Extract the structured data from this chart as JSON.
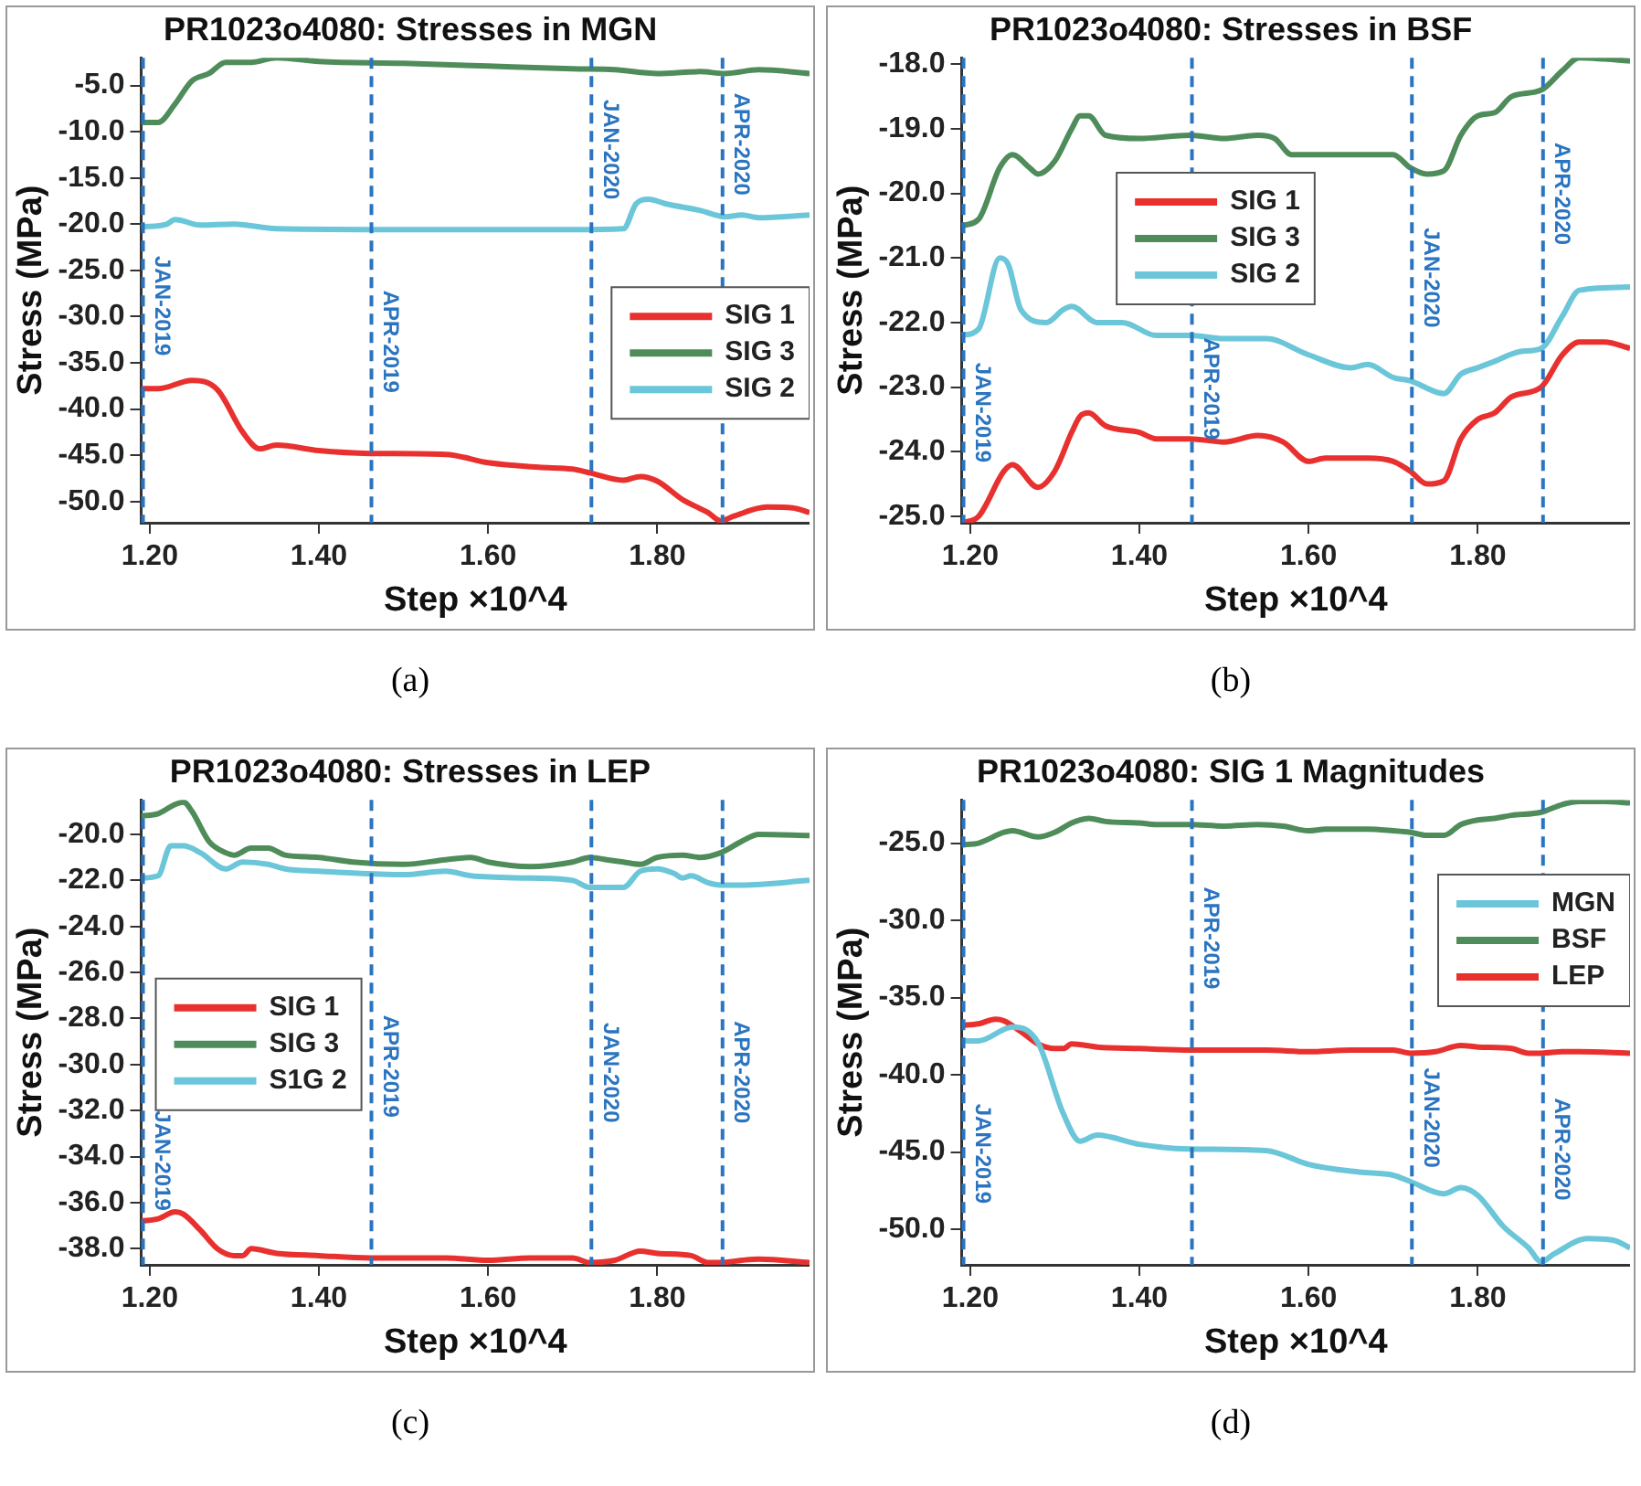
{
  "chart_data": [
    {
      "type": "line",
      "title": "PR1023o4080: Stresses in MGN",
      "xlabel": "Step ×10^4",
      "ylabel": "Stress (MPa)",
      "xlim": [
        1.19,
        1.98
      ],
      "ylim": [
        -52.3,
        -2.0
      ],
      "xticks": [
        {
          "value": 1.2,
          "label": "1.20"
        },
        {
          "value": 1.4,
          "label": "1.40"
        },
        {
          "value": 1.6,
          "label": "1.60"
        },
        {
          "value": 1.8,
          "label": "1.80"
        }
      ],
      "yticks": [
        {
          "value": -5,
          "label": "-5.0"
        },
        {
          "value": -10,
          "label": "-10.0"
        },
        {
          "value": -15,
          "label": "-15.0"
        },
        {
          "value": -20,
          "label": "-20.0"
        },
        {
          "value": -25,
          "label": "-25.0"
        },
        {
          "value": -30,
          "label": "-30.0"
        },
        {
          "value": -35,
          "label": "-35.0"
        },
        {
          "value": -40,
          "label": "-40.0"
        },
        {
          "value": -45,
          "label": "-45.0"
        },
        {
          "value": -50,
          "label": "-50.0"
        }
      ],
      "legend": "right",
      "marker": "none",
      "ref_lines": [
        {
          "axis": "x",
          "value": 1.19,
          "label": "JAN-2019",
          "color": "#2a74c0",
          "line_style": "dashed"
        },
        {
          "axis": "x",
          "value": 1.46,
          "label": "APR-2019",
          "color": "#2a74c0",
          "line_style": "dashed"
        },
        {
          "axis": "x",
          "value": 1.72,
          "label": "JAN-2020",
          "color": "#2a74c0",
          "line_style": "dashed"
        },
        {
          "axis": "x",
          "value": 1.875,
          "label": "APR-2020",
          "color": "#2a74c0",
          "line_style": "dashed"
        }
      ],
      "annotations": [
        "(a)"
      ],
      "series": [
        {
          "name": "SIG 1",
          "color": "#e8312f",
          "x": [
            1.19,
            1.21,
            1.25,
            1.28,
            1.31,
            1.33,
            1.35,
            1.4,
            1.46,
            1.55,
            1.6,
            1.66,
            1.7,
            1.72,
            1.76,
            1.78,
            1.8,
            1.83,
            1.86,
            1.875,
            1.89,
            1.93,
            1.96,
            1.98
          ],
          "values": [
            -37.8,
            -37.8,
            -36.9,
            -37.9,
            -42.5,
            -44.3,
            -43.9,
            -44.5,
            -44.8,
            -44.9,
            -45.8,
            -46.3,
            -46.5,
            -46.9,
            -47.7,
            -47.3,
            -47.8,
            -49.8,
            -51.2,
            -52.1,
            -51.6,
            -50.6,
            -50.7,
            -51.2
          ]
        },
        {
          "name": "SIG 3",
          "color": "#4e8c5a",
          "x": [
            1.19,
            1.21,
            1.23,
            1.25,
            1.27,
            1.29,
            1.32,
            1.35,
            1.4,
            1.5,
            1.6,
            1.7,
            1.75,
            1.8,
            1.85,
            1.88,
            1.92,
            1.98
          ],
          "values": [
            -9,
            -9,
            -7,
            -4.5,
            -3.7,
            -2.5,
            -2.5,
            -2.0,
            -2.4,
            -2.6,
            -2.9,
            -3.2,
            -3.3,
            -3.7,
            -3.5,
            -3.7,
            -3.3,
            -3.7
          ]
        },
        {
          "name": "SIG 2",
          "color": "#6ac6d8",
          "x": [
            1.19,
            1.22,
            1.23,
            1.26,
            1.3,
            1.35,
            1.5,
            1.6,
            1.7,
            1.76,
            1.775,
            1.79,
            1.81,
            1.85,
            1.88,
            1.9,
            1.92,
            1.98
          ],
          "values": [
            -20.3,
            -20,
            -19.5,
            -20.1,
            -20,
            -20.5,
            -20.6,
            -20.6,
            -20.6,
            -20.5,
            -17.8,
            -17.3,
            -17.8,
            -18.5,
            -19.2,
            -19.0,
            -19.3,
            -19.0
          ]
        }
      ]
    },
    {
      "type": "line",
      "title": "PR1023o4080: Stresses in BSF",
      "xlabel": "Step ×10^4",
      "ylabel": "Stress (MPa)",
      "xlim": [
        1.19,
        1.98
      ],
      "ylim": [
        -25.1,
        -17.9
      ],
      "xticks": [
        {
          "value": 1.2,
          "label": "1.20"
        },
        {
          "value": 1.4,
          "label": "1.40"
        },
        {
          "value": 1.6,
          "label": "1.60"
        },
        {
          "value": 1.8,
          "label": "1.80"
        }
      ],
      "yticks": [
        {
          "value": -18,
          "label": "-18.0"
        },
        {
          "value": -19,
          "label": "-19.0"
        },
        {
          "value": -20,
          "label": "-20.0"
        },
        {
          "value": -21,
          "label": "-21.0"
        },
        {
          "value": -22,
          "label": "-22.0"
        },
        {
          "value": -23,
          "label": "-23.0"
        },
        {
          "value": -24,
          "label": "-24.0"
        },
        {
          "value": -25,
          "label": "-25.0"
        }
      ],
      "legend": "top",
      "marker": "none",
      "ref_lines": [
        {
          "axis": "x",
          "value": 1.19,
          "label": "JAN-2019",
          "color": "#2a74c0",
          "line_style": "dashed"
        },
        {
          "axis": "x",
          "value": 1.46,
          "label": "APR-2019",
          "color": "#2a74c0",
          "line_style": "dashed"
        },
        {
          "axis": "x",
          "value": 1.72,
          "label": "JAN-2020",
          "color": "#2a74c0",
          "line_style": "dashed"
        },
        {
          "axis": "x",
          "value": 1.875,
          "label": "APR-2020",
          "color": "#2a74c0",
          "line_style": "dashed"
        }
      ],
      "annotations": [
        "(b)"
      ],
      "series": [
        {
          "name": "SIG 1",
          "color": "#e8312f",
          "x": [
            1.19,
            1.21,
            1.24,
            1.25,
            1.28,
            1.3,
            1.32,
            1.33,
            1.34,
            1.36,
            1.4,
            1.42,
            1.46,
            1.5,
            1.54,
            1.57,
            1.6,
            1.62,
            1.67,
            1.7,
            1.72,
            1.74,
            1.76,
            1.78,
            1.8,
            1.82,
            1.84,
            1.875,
            1.9,
            1.92,
            1.95,
            1.98
          ],
          "values": [
            -25.1,
            -25.0,
            -24.3,
            -24.2,
            -24.55,
            -24.3,
            -23.7,
            -23.45,
            -23.4,
            -23.6,
            -23.7,
            -23.8,
            -23.8,
            -23.85,
            -23.75,
            -23.85,
            -24.15,
            -24.1,
            -24.1,
            -24.15,
            -24.3,
            -24.5,
            -24.45,
            -23.8,
            -23.5,
            -23.4,
            -23.15,
            -23.0,
            -22.5,
            -22.3,
            -22.3,
            -22.4
          ]
        },
        {
          "name": "SIG 3",
          "color": "#4e8c5a",
          "x": [
            1.19,
            1.21,
            1.235,
            1.25,
            1.27,
            1.28,
            1.3,
            1.32,
            1.33,
            1.34,
            1.36,
            1.4,
            1.46,
            1.5,
            1.54,
            1.56,
            1.58,
            1.6,
            1.65,
            1.7,
            1.72,
            1.74,
            1.76,
            1.78,
            1.8,
            1.82,
            1.84,
            1.875,
            1.9,
            1.92,
            1.95,
            1.98
          ],
          "values": [
            -20.5,
            -20.4,
            -19.6,
            -19.4,
            -19.6,
            -19.7,
            -19.5,
            -19.0,
            -18.8,
            -18.8,
            -19.1,
            -19.15,
            -19.1,
            -19.15,
            -19.1,
            -19.15,
            -19.4,
            -19.4,
            -19.4,
            -19.4,
            -19.6,
            -19.7,
            -19.65,
            -19.1,
            -18.8,
            -18.75,
            -18.5,
            -18.4,
            -18.1,
            -17.9,
            -17.92,
            -17.95
          ]
        },
        {
          "name": "SIG 2",
          "color": "#6ac6d8",
          "x": [
            1.19,
            1.21,
            1.235,
            1.245,
            1.26,
            1.29,
            1.31,
            1.32,
            1.35,
            1.38,
            1.42,
            1.46,
            1.5,
            1.55,
            1.6,
            1.65,
            1.67,
            1.7,
            1.72,
            1.76,
            1.78,
            1.8,
            1.82,
            1.85,
            1.875,
            1.9,
            1.92,
            1.98
          ],
          "values": [
            -22.2,
            -22.1,
            -21.0,
            -21.1,
            -21.8,
            -22.0,
            -21.8,
            -21.75,
            -22.0,
            -22.0,
            -22.2,
            -22.2,
            -22.25,
            -22.25,
            -22.5,
            -22.7,
            -22.65,
            -22.85,
            -22.9,
            -23.1,
            -22.8,
            -22.7,
            -22.6,
            -22.45,
            -22.4,
            -21.9,
            -21.5,
            -21.45
          ]
        }
      ]
    },
    {
      "type": "line",
      "title": "PR1023o4080: Stresses in LEP",
      "xlabel": "Step ×10^4",
      "ylabel": "Stress (MPa)",
      "xlim": [
        1.19,
        1.98
      ],
      "ylim": [
        -38.7,
        -18.5
      ],
      "xticks": [
        {
          "value": 1.2,
          "label": "1.20"
        },
        {
          "value": 1.4,
          "label": "1.40"
        },
        {
          "value": 1.6,
          "label": "1.60"
        },
        {
          "value": 1.8,
          "label": "1.80"
        }
      ],
      "yticks": [
        {
          "value": -20,
          "label": "-20.0"
        },
        {
          "value": -22,
          "label": "-22.0"
        },
        {
          "value": -24,
          "label": "-24.0"
        },
        {
          "value": -26,
          "label": "-26.0"
        },
        {
          "value": -28,
          "label": "-28.0"
        },
        {
          "value": -30,
          "label": "-30.0"
        },
        {
          "value": -32,
          "label": "-32.0"
        },
        {
          "value": -34,
          "label": "-34.0"
        },
        {
          "value": -36,
          "label": "-36.0"
        },
        {
          "value": -38,
          "label": "-38.0"
        }
      ],
      "legend": "left",
      "marker": "none",
      "ref_lines": [
        {
          "axis": "x",
          "value": 1.19,
          "label": "JAN-2019",
          "color": "#2a74c0",
          "line_style": "dashed"
        },
        {
          "axis": "x",
          "value": 1.46,
          "label": "APR-2019",
          "color": "#2a74c0",
          "line_style": "dashed"
        },
        {
          "axis": "x",
          "value": 1.72,
          "label": "JAN-2020",
          "color": "#2a74c0",
          "line_style": "dashed"
        },
        {
          "axis": "x",
          "value": 1.875,
          "label": "APR-2020",
          "color": "#2a74c0",
          "line_style": "dashed"
        }
      ],
      "annotations": [
        "(c)"
      ],
      "series": [
        {
          "name": "SIG 1",
          "color": "#e8312f",
          "x": [
            1.19,
            1.21,
            1.23,
            1.24,
            1.26,
            1.28,
            1.3,
            1.31,
            1.32,
            1.35,
            1.4,
            1.46,
            1.55,
            1.6,
            1.65,
            1.7,
            1.72,
            1.75,
            1.78,
            1.8,
            1.84,
            1.86,
            1.875,
            1.9,
            1.92,
            1.98
          ],
          "values": [
            -36.8,
            -36.7,
            -36.4,
            -36.5,
            -37.2,
            -38.0,
            -38.3,
            -38.3,
            -38.0,
            -38.2,
            -38.3,
            -38.4,
            -38.4,
            -38.5,
            -38.4,
            -38.4,
            -38.6,
            -38.5,
            -38.1,
            -38.2,
            -38.3,
            -38.6,
            -38.6,
            -38.5,
            -38.45,
            -38.6
          ]
        },
        {
          "name": "SIG 3",
          "color": "#4e8c5a",
          "x": [
            1.19,
            1.21,
            1.23,
            1.24,
            1.25,
            1.27,
            1.29,
            1.3,
            1.32,
            1.34,
            1.36,
            1.4,
            1.44,
            1.5,
            1.55,
            1.58,
            1.6,
            1.65,
            1.7,
            1.72,
            1.74,
            1.76,
            1.78,
            1.8,
            1.83,
            1.85,
            1.875,
            1.9,
            1.92,
            1.98
          ],
          "values": [
            -19.2,
            -19.1,
            -18.7,
            -18.6,
            -19.0,
            -20.3,
            -20.8,
            -20.9,
            -20.6,
            -20.6,
            -20.9,
            -21.0,
            -21.2,
            -21.3,
            -21.1,
            -21.0,
            -21.2,
            -21.4,
            -21.2,
            -21.0,
            -21.1,
            -21.2,
            -21.3,
            -21.0,
            -20.9,
            -21.0,
            -20.8,
            -20.3,
            -20.0,
            -20.05
          ]
        },
        {
          "name": "S1G 2",
          "color": "#6ac6d8",
          "x": [
            1.19,
            1.21,
            1.225,
            1.24,
            1.26,
            1.29,
            1.31,
            1.34,
            1.36,
            1.4,
            1.45,
            1.5,
            1.55,
            1.58,
            1.65,
            1.7,
            1.72,
            1.76,
            1.78,
            1.8,
            1.82,
            1.83,
            1.84,
            1.86,
            1.875,
            1.9,
            1.98
          ],
          "values": [
            -21.9,
            -21.8,
            -20.5,
            -20.5,
            -20.8,
            -21.5,
            -21.2,
            -21.3,
            -21.5,
            -21.6,
            -21.7,
            -21.75,
            -21.6,
            -21.8,
            -21.9,
            -22.0,
            -22.3,
            -22.3,
            -21.6,
            -21.5,
            -21.7,
            -21.9,
            -21.8,
            -22.1,
            -22.2,
            -22.2,
            -22.0
          ]
        }
      ]
    },
    {
      "type": "line",
      "title": "PR1023o4080: SIG 1 Magnitudes",
      "xlabel": "Step ×10^4",
      "ylabel": "Stress (MPa)",
      "xlim": [
        1.19,
        1.98
      ],
      "ylim": [
        -52.3,
        -22.2
      ],
      "xticks": [
        {
          "value": 1.2,
          "label": "1.20"
        },
        {
          "value": 1.4,
          "label": "1.40"
        },
        {
          "value": 1.6,
          "label": "1.60"
        },
        {
          "value": 1.8,
          "label": "1.80"
        }
      ],
      "yticks": [
        {
          "value": -25,
          "label": "-25.0"
        },
        {
          "value": -30,
          "label": "-30.0"
        },
        {
          "value": -35,
          "label": "-35.0"
        },
        {
          "value": -40,
          "label": "-40.0"
        },
        {
          "value": -45,
          "label": "-45.0"
        },
        {
          "value": -50,
          "label": "-50.0"
        }
      ],
      "legend": "right",
      "marker": "none",
      "ref_lines": [
        {
          "axis": "x",
          "value": 1.19,
          "label": "JAN-2019",
          "color": "#2a74c0",
          "line_style": "dashed"
        },
        {
          "axis": "x",
          "value": 1.46,
          "label": "APR-2019",
          "color": "#2a74c0",
          "line_style": "dashed"
        },
        {
          "axis": "x",
          "value": 1.72,
          "label": "JAN-2020",
          "color": "#2a74c0",
          "line_style": "dashed"
        },
        {
          "axis": "x",
          "value": 1.875,
          "label": "APR-2020",
          "color": "#2a74c0",
          "line_style": "dashed"
        }
      ],
      "annotations": [
        "(d)"
      ],
      "series": [
        {
          "name": "MGN",
          "color": "#6ac6d8",
          "x": [
            1.19,
            1.21,
            1.25,
            1.28,
            1.31,
            1.33,
            1.35,
            1.4,
            1.46,
            1.55,
            1.6,
            1.66,
            1.7,
            1.72,
            1.76,
            1.78,
            1.8,
            1.83,
            1.86,
            1.875,
            1.89,
            1.93,
            1.96,
            1.98
          ],
          "values": [
            -37.8,
            -37.8,
            -36.9,
            -37.9,
            -42.5,
            -44.3,
            -43.9,
            -44.5,
            -44.8,
            -44.9,
            -45.8,
            -46.3,
            -46.5,
            -46.9,
            -47.7,
            -47.3,
            -47.8,
            -49.8,
            -51.2,
            -52.1,
            -51.6,
            -50.6,
            -50.7,
            -51.2
          ]
        },
        {
          "name": "BSF",
          "color": "#4e8c5a",
          "x": [
            1.19,
            1.21,
            1.24,
            1.25,
            1.28,
            1.3,
            1.32,
            1.33,
            1.34,
            1.36,
            1.4,
            1.42,
            1.46,
            1.5,
            1.54,
            1.57,
            1.6,
            1.62,
            1.67,
            1.7,
            1.72,
            1.74,
            1.76,
            1.78,
            1.8,
            1.82,
            1.84,
            1.875,
            1.9,
            1.92,
            1.95,
            1.98
          ],
          "values": [
            -25.1,
            -25.0,
            -24.3,
            -24.2,
            -24.6,
            -24.3,
            -23.7,
            -23.5,
            -23.4,
            -23.6,
            -23.7,
            -23.8,
            -23.8,
            -23.9,
            -23.8,
            -23.9,
            -24.2,
            -24.1,
            -24.1,
            -24.2,
            -24.3,
            -24.5,
            -24.5,
            -23.8,
            -23.5,
            -23.4,
            -23.2,
            -23.0,
            -22.5,
            -22.3,
            -22.3,
            -22.4
          ]
        },
        {
          "name": "LEP",
          "color": "#e8312f",
          "x": [
            1.19,
            1.21,
            1.23,
            1.24,
            1.26,
            1.28,
            1.3,
            1.31,
            1.32,
            1.35,
            1.4,
            1.46,
            1.55,
            1.6,
            1.65,
            1.7,
            1.72,
            1.75,
            1.78,
            1.8,
            1.84,
            1.86,
            1.875,
            1.9,
            1.92,
            1.98
          ],
          "values": [
            -36.8,
            -36.7,
            -36.4,
            -36.5,
            -37.2,
            -38.0,
            -38.3,
            -38.3,
            -38.0,
            -38.2,
            -38.3,
            -38.4,
            -38.4,
            -38.5,
            -38.4,
            -38.4,
            -38.6,
            -38.5,
            -38.1,
            -38.2,
            -38.3,
            -38.6,
            -38.6,
            -38.5,
            -38.5,
            -38.6
          ]
        }
      ]
    }
  ]
}
